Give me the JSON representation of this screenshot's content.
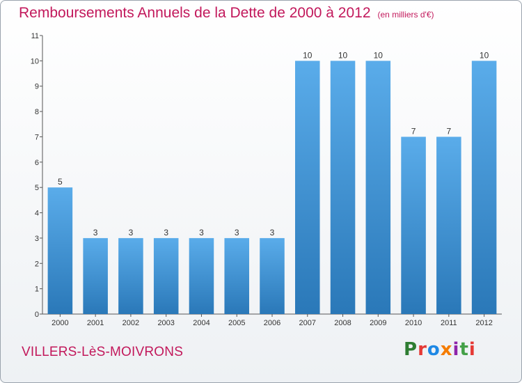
{
  "title": "Remboursements Annuels de la Dette de 2000 à 2012",
  "unit": "(en milliers d'€)",
  "commune": "VILLERS-LèS-MOIVRONS",
  "logo": {
    "text": "Proxiti",
    "letters": [
      {
        "c": "P",
        "color": "#2e7d32"
      },
      {
        "c": "r",
        "color": "#e53935"
      },
      {
        "c": "o",
        "color": "#1e88e5"
      },
      {
        "c": "x",
        "color": "#f57c00"
      },
      {
        "c": "i",
        "color": "#8e24aa"
      },
      {
        "c": "t",
        "color": "#43a047"
      },
      {
        "c": "i",
        "color": "#e53935"
      }
    ]
  },
  "colors": {
    "title": "#c2185b",
    "bar_light": "#5aacea",
    "bar_dark": "#2a78b8",
    "axis": "#555555"
  },
  "chart_data": {
    "type": "bar",
    "categories": [
      "2000",
      "2001",
      "2002",
      "2003",
      "2004",
      "2005",
      "2006",
      "2007",
      "2008",
      "2009",
      "2010",
      "2011",
      "2012"
    ],
    "values": [
      5,
      3,
      3,
      3,
      3,
      3,
      3,
      10,
      10,
      10,
      7,
      7,
      10
    ],
    "ylim": [
      0,
      11
    ],
    "yticks": [
      0,
      1,
      2,
      3,
      4,
      5,
      6,
      7,
      8,
      9,
      10,
      11
    ],
    "grid": false,
    "xlabel": "",
    "ylabel": ""
  }
}
